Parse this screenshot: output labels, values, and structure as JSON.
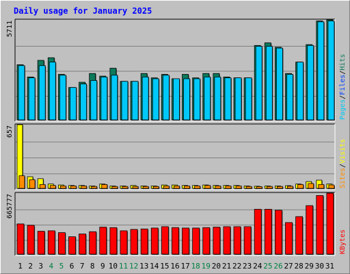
{
  "chart_data": {
    "type": "bar",
    "title": "Daily usage for January 2025",
    "categories": [
      "1",
      "2",
      "3",
      "4",
      "5",
      "6",
      "7",
      "8",
      "9",
      "10",
      "11",
      "12",
      "13",
      "14",
      "15",
      "16",
      "17",
      "18",
      "19",
      "20",
      "21",
      "22",
      "23",
      "24",
      "25",
      "26",
      "27",
      "28",
      "29",
      "30",
      "31"
    ],
    "weekend_days": [
      "4",
      "5",
      "11",
      "12",
      "18",
      "19",
      "25",
      "26"
    ],
    "panels": [
      {
        "id": "hits-panel",
        "ymax_label": "5711",
        "ymax": 5711,
        "series": [
          {
            "name": "Hits",
            "color": "#0d7a5c",
            "values": [
              3150,
              2450,
              3400,
              3550,
              2600,
              1850,
              2150,
              2650,
              2500,
              2950,
              2200,
              2200,
              2650,
              2400,
              2600,
              2350,
              2600,
              2400,
              2650,
              2650,
              2450,
              2400,
              2400,
              4250,
              4400,
              4150,
              2650,
              3300,
              4300,
              5650,
              5711
            ]
          },
          {
            "name": "Files",
            "color": "#00c8f8",
            "values": [
              3100,
              2400,
              3100,
              3300,
              2550,
              1850,
              2050,
              2250,
              2450,
              2550,
              2200,
              2200,
              2450,
              2350,
              2550,
              2350,
              2350,
              2350,
              2450,
              2450,
              2400,
              2400,
              2400,
              4200,
              4200,
              4100,
              2600,
              3300,
              4250,
              5600,
              5650
            ]
          },
          {
            "name": "Pages",
            "color": "#00c8f8",
            "values": [
              0,
              0,
              0,
              0,
              0,
              0,
              0,
              0,
              0,
              0,
              0,
              0,
              0,
              0,
              0,
              0,
              0,
              0,
              0,
              0,
              0,
              0,
              0,
              0,
              0,
              0,
              0,
              0,
              0,
              0,
              0
            ]
          }
        ],
        "legend": [
          "Pages",
          "/",
          "Files",
          "/",
          "Hits"
        ],
        "legend_colors": [
          "#00c8f8",
          "#000000",
          "#0040ff",
          "#000000",
          "#0d7a5c"
        ]
      },
      {
        "id": "visits-panel",
        "ymax_label": "657",
        "ymax": 657,
        "series": [
          {
            "name": "Visits",
            "color": "#ffff00",
            "values": [
              657,
              120,
              100,
              45,
              35,
              30,
              30,
              25,
              45,
              25,
              25,
              30,
              25,
              25,
              35,
              35,
              30,
              30,
              35,
              30,
              30,
              30,
              25,
              22,
              25,
              25,
              28,
              45,
              70,
              85,
              45
            ]
          },
          {
            "name": "Sites",
            "color": "#ff8c00",
            "values": [
              130,
              90,
              40,
              30,
              25,
              25,
              25,
              20,
              40,
              20,
              20,
              20,
              20,
              20,
              25,
              25,
              25,
              25,
              30,
              25,
              25,
              25,
              20,
              18,
              20,
              20,
              22,
              40,
              50,
              40,
              35
            ]
          }
        ],
        "legend": [
          "Sites",
          "/",
          "Visits"
        ],
        "legend_colors": [
          "#ff8c00",
          "#000000",
          "#ffff00"
        ]
      },
      {
        "id": "kbytes-panel",
        "ymax_label": "665777",
        "ymax": 665777,
        "series": [
          {
            "name": "KBytes",
            "color": "#ff0000",
            "values": [
              330000,
              315000,
              250000,
              255000,
              235000,
              190000,
              220000,
              245000,
              295000,
              290000,
              255000,
              270000,
              275000,
              285000,
              300000,
              290000,
              285000,
              285000,
              290000,
              295000,
              300000,
              300000,
              300000,
              490000,
              490000,
              480000,
              345000,
              410000,
              530000,
              640000,
              665777
            ]
          }
        ],
        "legend": [
          "KBytes"
        ],
        "legend_colors": [
          "#ff0000"
        ]
      }
    ],
    "colors": {
      "title": "#0000ff",
      "weekday_label": "#000000",
      "weekend_label": "#008040",
      "panel_bg": "#c0c0c0",
      "grid": "#808080",
      "bar_outline": "#000000"
    }
  }
}
